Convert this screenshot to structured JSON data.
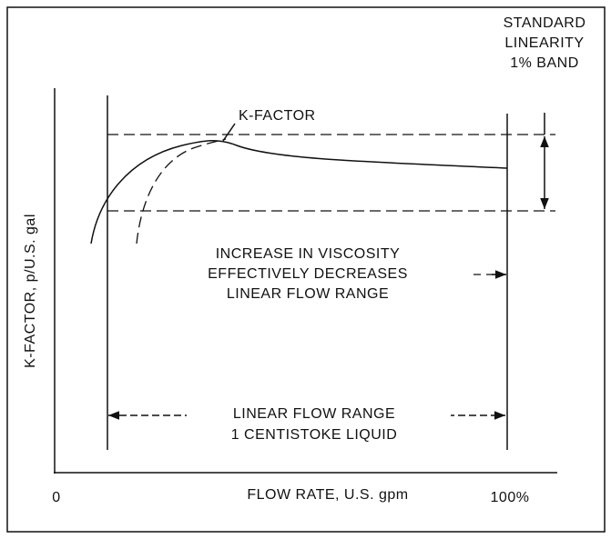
{
  "band_label": [
    "STANDARD",
    "LINEARITY",
    "1% BAND"
  ],
  "curve_label": "K-FACTOR",
  "viscosity_note": [
    "INCREASE IN VISCOSITY",
    "EFFECTIVELY DECREASES",
    "LINEAR FLOW RANGE"
  ],
  "range_note": [
    "LINEAR FLOW RANGE",
    "1 CENTISTOKE LIQUID"
  ],
  "y_axis_label": "K-FACTOR, p/U.S. gal",
  "x_axis_label": "FLOW RATE, U.S. gpm",
  "x_start": "0",
  "x_end": "100%"
}
